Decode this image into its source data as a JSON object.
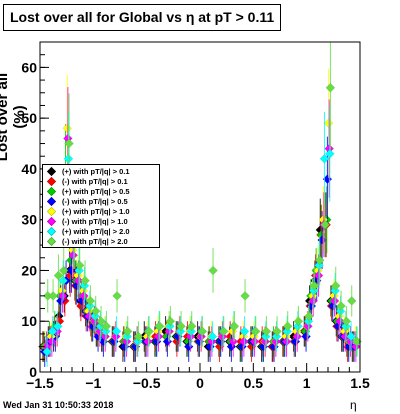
{
  "header": {
    "title": "Lost over all for Global vs   η at pT > 0.11"
  },
  "footer": {
    "timestamp": "Wed Jan 31 10:50:33 2018"
  },
  "colors": {
    "frame": "#000000",
    "background": "#ffffff"
  },
  "chart_data": {
    "type": "scatter",
    "title": "Lost over all for Global vs   η at pT > 0.11",
    "xlabel": "η",
    "ylabel": "Lost over all (%)",
    "xlim": [
      -1.5,
      1.5
    ],
    "ylim": [
      0,
      65
    ],
    "x_ticks": [
      -1.5,
      -1,
      -0.5,
      0,
      0.5,
      1,
      1.5
    ],
    "x_tick_labels": [
      "−1.5",
      "−1",
      "−0.5",
      "0",
      "0.5",
      "1",
      "1.5"
    ],
    "y_ticks": [
      0,
      10,
      20,
      30,
      40,
      50,
      60
    ],
    "y_tick_labels": [
      "0",
      "10",
      "20",
      "30",
      "40",
      "50",
      "60"
    ],
    "grid": false,
    "legend_position": "left-middle",
    "series": [
      {
        "name": "(+) with pT/|q| > 0.1",
        "color": "#000000",
        "marker": "diamond",
        "x": [
          -1.45,
          -1.4,
          -1.35,
          -1.3,
          -1.25,
          -1.2,
          -1.15,
          -1.1,
          -1.05,
          -1.0,
          -0.95,
          -0.9,
          -0.8,
          -0.7,
          -0.6,
          -0.5,
          -0.4,
          -0.3,
          -0.2,
          -0.1,
          0.0,
          0.1,
          0.2,
          0.3,
          0.4,
          0.5,
          0.6,
          0.7,
          0.8,
          0.9,
          1.0,
          1.05,
          1.1,
          1.15,
          1.2,
          1.25,
          1.3,
          1.35,
          1.4,
          1.45
        ],
        "y": [
          5,
          6,
          7,
          11,
          15,
          20,
          18,
          14,
          12,
          10,
          8,
          7,
          6,
          5,
          5,
          7,
          6,
          8,
          7,
          6,
          7,
          5,
          6,
          6,
          5,
          6,
          5,
          5,
          6,
          7,
          8,
          14,
          18,
          28,
          29,
          14,
          10,
          7,
          6,
          5
        ]
      },
      {
        "name": "(-) with pT/|q| > 0.1",
        "color": "#ff0000",
        "marker": "diamond",
        "x": [
          -1.45,
          -1.4,
          -1.35,
          -1.3,
          -1.25,
          -1.2,
          -1.15,
          -1.1,
          -1.05,
          -1.0,
          -0.95,
          -0.9,
          -0.8,
          -0.7,
          -0.6,
          -0.5,
          -0.4,
          -0.3,
          -0.2,
          -0.1,
          0.0,
          0.1,
          0.2,
          0.3,
          0.4,
          0.5,
          0.6,
          0.7,
          0.8,
          0.9,
          1.0,
          1.05,
          1.1,
          1.15,
          1.2,
          1.25,
          1.3,
          1.35,
          1.4,
          1.45
        ],
        "y": [
          5,
          6,
          8,
          10,
          14,
          19,
          17,
          13,
          11,
          9,
          8,
          7,
          6,
          6,
          5,
          6,
          7,
          7,
          6,
          7,
          6,
          6,
          5,
          7,
          6,
          5,
          6,
          5,
          6,
          6,
          8,
          13,
          19,
          27,
          29,
          13,
          9,
          7,
          5,
          5
        ]
      },
      {
        "name": "(+) with pT/|q| > 0.5",
        "color": "#00cc00",
        "marker": "diamond",
        "x": [
          -1.45,
          -1.4,
          -1.35,
          -1.3,
          -1.25,
          -1.2,
          -1.15,
          -1.1,
          -1.05,
          -1.0,
          -0.95,
          -0.9,
          -0.8,
          -0.7,
          -0.6,
          -0.5,
          -0.4,
          -0.3,
          -0.2,
          -0.1,
          0.0,
          0.1,
          0.2,
          0.3,
          0.4,
          0.5,
          0.6,
          0.7,
          0.8,
          0.9,
          1.0,
          1.05,
          1.1,
          1.15,
          1.2,
          1.25,
          1.3,
          1.35,
          1.4,
          1.45
        ],
        "y": [
          5,
          7,
          9,
          15,
          40,
          22,
          18,
          15,
          12,
          9,
          8,
          7,
          6,
          6,
          5,
          6,
          6,
          7,
          7,
          6,
          6,
          6,
          6,
          6,
          5,
          6,
          5,
          6,
          6,
          6,
          8,
          15,
          20,
          27,
          30,
          14,
          10,
          7,
          6,
          5
        ]
      },
      {
        "name": "(-) with pT/|q| > 0.5",
        "color": "#0000ff",
        "marker": "diamond",
        "x": [
          -1.45,
          -1.4,
          -1.35,
          -1.3,
          -1.25,
          -1.2,
          -1.15,
          -1.1,
          -1.05,
          -1.0,
          -0.95,
          -0.9,
          -0.8,
          -0.7,
          -0.6,
          -0.5,
          -0.4,
          -0.3,
          -0.2,
          -0.1,
          0.0,
          0.1,
          0.2,
          0.3,
          0.4,
          0.5,
          0.6,
          0.7,
          0.8,
          0.9,
          1.0,
          1.05,
          1.1,
          1.15,
          1.2,
          1.25,
          1.3,
          1.35,
          1.4,
          1.45
        ],
        "y": [
          4,
          6,
          7,
          14,
          18,
          20,
          17,
          14,
          11,
          9,
          7,
          6,
          6,
          5,
          5,
          6,
          6,
          6,
          7,
          5,
          6,
          5,
          6,
          5,
          5,
          6,
          5,
          5,
          6,
          6,
          7,
          13,
          18,
          26,
          38,
          13,
          9,
          7,
          5,
          5
        ]
      },
      {
        "name": "(+) with pT/|q| > 1.0",
        "color": "#ffff00",
        "marker": "diamond",
        "x": [
          -1.45,
          -1.4,
          -1.35,
          -1.3,
          -1.25,
          -1.2,
          -1.15,
          -1.1,
          -1.05,
          -1.0,
          -0.95,
          -0.9,
          -0.8,
          -0.7,
          -0.6,
          -0.5,
          -0.4,
          -0.3,
          -0.2,
          -0.1,
          0.0,
          0.1,
          0.2,
          0.3,
          0.4,
          0.5,
          0.6,
          0.7,
          0.8,
          0.9,
          1.0,
          1.05,
          1.1,
          1.15,
          1.2,
          1.25,
          1.3,
          1.35,
          1.4,
          1.45
        ],
        "y": [
          5,
          7,
          8,
          16,
          48,
          24,
          19,
          16,
          12,
          10,
          8,
          8,
          7,
          7,
          6,
          7,
          8,
          9,
          8,
          8,
          7,
          7,
          7,
          8,
          7,
          7,
          6,
          6,
          7,
          8,
          9,
          15,
          20,
          30,
          49,
          15,
          11,
          8,
          6,
          6
        ]
      },
      {
        "name": "(-) with pT/|q| > 1.0",
        "color": "#ff00ff",
        "marker": "diamond",
        "x": [
          -1.45,
          -1.4,
          -1.35,
          -1.3,
          -1.25,
          -1.2,
          -1.15,
          -1.1,
          -1.05,
          -1.0,
          -0.95,
          -0.9,
          -0.8,
          -0.7,
          -0.6,
          -0.5,
          -0.4,
          -0.3,
          -0.2,
          -0.1,
          0.0,
          0.1,
          0.2,
          0.3,
          0.4,
          0.5,
          0.6,
          0.7,
          0.8,
          0.9,
          1.0,
          1.05,
          1.1,
          1.15,
          1.2,
          1.25,
          1.3,
          1.35,
          1.4,
          1.45
        ],
        "y": [
          5,
          6,
          8,
          15,
          46,
          23,
          18,
          15,
          11,
          10,
          8,
          7,
          7,
          6,
          6,
          6,
          7,
          8,
          8,
          7,
          7,
          6,
          7,
          6,
          6,
          6,
          6,
          6,
          6,
          7,
          9,
          14,
          19,
          29,
          44,
          14,
          10,
          7,
          6,
          5
        ]
      },
      {
        "name": "(+) with pT/|q| > 2.0",
        "color": "#00ffff",
        "marker": "diamond",
        "x": [
          -1.45,
          -1.4,
          -1.35,
          -1.3,
          -1.25,
          -1.2,
          -1.15,
          -1.1,
          -1.05,
          -1.0,
          -0.95,
          -0.9,
          -0.8,
          -0.7,
          -0.6,
          -0.5,
          -0.4,
          -0.3,
          -0.2,
          -0.1,
          0.0,
          0.1,
          0.2,
          0.3,
          0.4,
          0.5,
          0.6,
          0.7,
          0.8,
          0.9,
          1.0,
          1.05,
          1.1,
          1.15,
          1.2,
          1.25,
          1.3,
          1.35,
          1.4,
          1.45
        ],
        "y": [
          4,
          8,
          9,
          18,
          42,
          26,
          20,
          17,
          13,
          11,
          9,
          8,
          8,
          7,
          6,
          8,
          9,
          9,
          8,
          8,
          8,
          7,
          8,
          9,
          8,
          8,
          7,
          7,
          8,
          9,
          10,
          16,
          21,
          42,
          43,
          16,
          12,
          9,
          7,
          6
        ]
      },
      {
        "name": "(-) with pT/|q| > 2.0",
        "color": "#66dd44",
        "marker": "diamond",
        "x": [
          -1.45,
          -1.4,
          -1.35,
          -1.3,
          -1.25,
          -1.2,
          -1.15,
          -1.1,
          -1.05,
          -1.0,
          -0.95,
          -0.9,
          -0.8,
          -0.7,
          -0.6,
          -0.5,
          -0.4,
          -0.3,
          -0.2,
          -0.1,
          0.0,
          0.1,
          0.2,
          0.3,
          0.4,
          0.5,
          0.6,
          0.7,
          0.8,
          0.9,
          1.0,
          1.05,
          1.1,
          1.15,
          1.2,
          1.25,
          1.3,
          1.35,
          1.4,
          1.45
        ],
        "y": [
          15,
          15,
          19,
          20,
          45,
          26,
          21,
          18,
          14,
          12,
          10,
          9,
          15,
          8,
          7,
          8,
          9,
          10,
          9,
          9,
          8,
          20,
          8,
          9,
          15,
          8,
          8,
          8,
          9,
          10,
          11,
          17,
          22,
          29,
          56,
          17,
          13,
          10,
          14,
          6
        ]
      }
    ]
  }
}
